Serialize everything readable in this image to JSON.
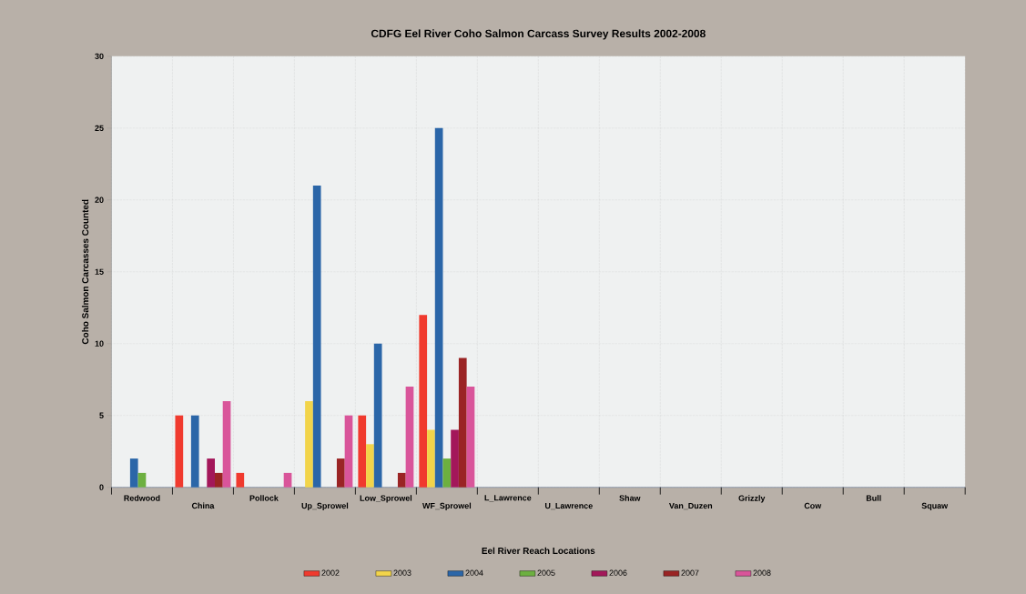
{
  "chart_data": {
    "type": "bar",
    "title": "CDFG Eel River Coho Salmon Carcass Survey Results 2002-2008",
    "xlabel": "Eel River Reach Locations",
    "ylabel": "Coho Salmon Carcasses Counted",
    "categories": [
      "Redwood",
      "China",
      "Pollock",
      "Up_Sprowel",
      "Low_Sprowel",
      "WF_Sprowel",
      "L_Lawrence",
      "U_Lawrence",
      "Shaw",
      "Van_Duzen",
      "Grizzly",
      "Cow",
      "Bull",
      "Squaw"
    ],
    "series": [
      {
        "name": "2002",
        "color": "#f03a2e",
        "values": [
          0,
          5,
          1,
          0,
          5,
          12,
          0,
          0,
          0,
          0,
          0,
          0,
          0,
          0
        ]
      },
      {
        "name": "2003",
        "color": "#f2d44a",
        "values": [
          0,
          0,
          0,
          6,
          3,
          4,
          0,
          0,
          0,
          0,
          0,
          0,
          0,
          0
        ]
      },
      {
        "name": "2004",
        "color": "#2b66a8",
        "values": [
          2,
          5,
          0,
          21,
          10,
          25,
          0,
          0,
          0,
          0,
          0,
          0,
          0,
          0
        ]
      },
      {
        "name": "2005",
        "color": "#6db040",
        "values": [
          1,
          0,
          0,
          0,
          0,
          2,
          0,
          0,
          0,
          0,
          0,
          0,
          0,
          0
        ]
      },
      {
        "name": "2006",
        "color": "#a3175a",
        "values": [
          0,
          2,
          0,
          0,
          0,
          4,
          0,
          0,
          0,
          0,
          0,
          0,
          0,
          0
        ]
      },
      {
        "name": "2007",
        "color": "#9a2424",
        "values": [
          0,
          1,
          0,
          2,
          1,
          9,
          0,
          0,
          0,
          0,
          0,
          0,
          0,
          0
        ]
      },
      {
        "name": "2008",
        "color": "#d9559a",
        "values": [
          0,
          6,
          1,
          5,
          7,
          7,
          0,
          0,
          0,
          0,
          0,
          0,
          0,
          0
        ]
      }
    ],
    "ylim": [
      0,
      30
    ],
    "yticks": [
      0,
      5,
      10,
      15,
      20,
      25,
      30
    ],
    "grid": true,
    "legend": "bottom"
  }
}
